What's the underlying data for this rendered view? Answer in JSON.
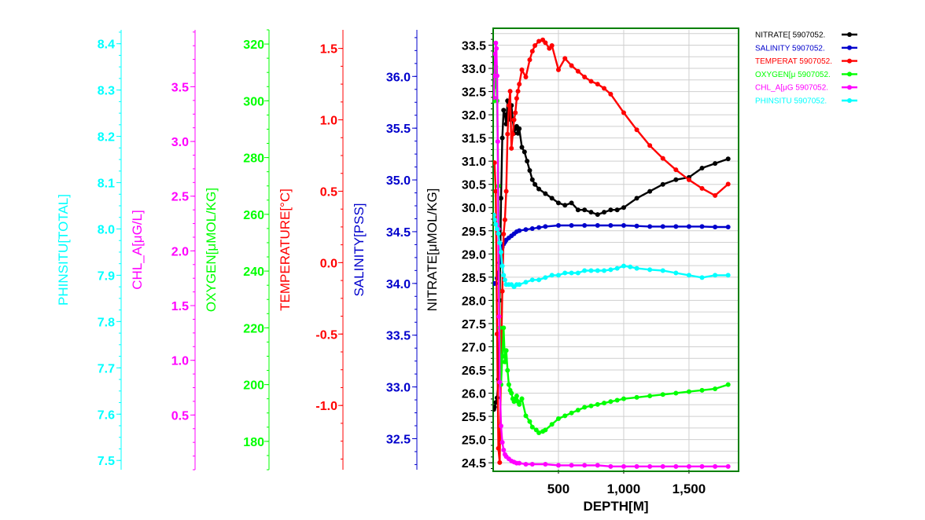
{
  "chart_data": {
    "type": "line",
    "xaxis": {
      "label": "DEPTH[M]",
      "range": [
        0,
        1880
      ],
      "ticks": [
        500,
        1000,
        1500
      ],
      "tick_labels": [
        "500",
        "1,000",
        "1,500"
      ]
    },
    "grid": true,
    "legend_position": "top-right",
    "axes": [
      {
        "key": "phinsitu",
        "label": "PHINSITU[TOTAL]",
        "color": "#00ffff",
        "range": [
          7.48,
          8.43
        ],
        "ticks": [
          7.5,
          7.6,
          7.7,
          7.8,
          7.9,
          8.0,
          8.1,
          8.2,
          8.3,
          8.4
        ],
        "tick_labels": [
          "7.5",
          "7.6",
          "7.7",
          "7.8",
          "7.9",
          "8.0",
          "8.1",
          "8.2",
          "8.3",
          "8.4"
        ]
      },
      {
        "key": "chl",
        "label": "CHL_A[μG/L]",
        "color": "#ff00ff",
        "range": [
          0,
          4.02
        ],
        "ticks": [
          0.5,
          1.0,
          1.5,
          2.0,
          2.5,
          3.0,
          3.5
        ],
        "tick_labels": [
          "0.5",
          "1.0",
          "1.5",
          "2.0",
          "2.5",
          "3.0",
          "3.5"
        ]
      },
      {
        "key": "oxygen",
        "label": "OXYGEN[μMOL/KG]",
        "color": "#00ff00",
        "range": [
          170,
          325
        ],
        "ticks": [
          180,
          200,
          220,
          240,
          260,
          280,
          300,
          320
        ],
        "tick_labels": [
          "180",
          "200",
          "220",
          "240",
          "260",
          "280",
          "300",
          "320"
        ]
      },
      {
        "key": "temperature",
        "label": "TEMPERATURE[°C]",
        "color": "#ff0000",
        "range": [
          -1.45,
          1.63
        ],
        "ticks": [
          -1.0,
          -0.5,
          0.0,
          0.5,
          1.0,
          1.5
        ],
        "tick_labels": [
          "-1.0",
          "-0.5",
          "0.0",
          "0.5",
          "1.0",
          "1.5"
        ]
      },
      {
        "key": "salinity",
        "label": "SALINITY[PSS]",
        "color": "#0000cc",
        "range": [
          32.2,
          36.45
        ],
        "ticks": [
          32.5,
          33.0,
          33.5,
          34.0,
          34.5,
          35.0,
          35.5,
          36.0
        ],
        "tick_labels": [
          "32.5",
          "33.0",
          "33.5",
          "34.0",
          "34.5",
          "35.0",
          "35.5",
          "36.0"
        ]
      },
      {
        "key": "nitrate",
        "label": "NITRATE[μMOL/KG]",
        "color": "#000000",
        "range": [
          24.35,
          33.83
        ],
        "ticks": [
          24.5,
          25.0,
          25.5,
          26.0,
          26.5,
          27.0,
          27.5,
          28.0,
          28.5,
          29.0,
          29.5,
          30.0,
          30.5,
          31.0,
          31.5,
          32.0,
          32.5,
          33.0,
          33.5
        ],
        "tick_labels": [
          "24.5",
          "25.0",
          "25.5",
          "26.0",
          "26.5",
          "27.0",
          "27.5",
          "28.0",
          "28.5",
          "29.0",
          "29.5",
          "30.0",
          "30.5",
          "31.0",
          "31.5",
          "32.0",
          "32.5",
          "33.0",
          "33.5"
        ]
      }
    ],
    "series": [
      {
        "name": "NITRATE[ 5907052.",
        "axis": "nitrate",
        "color": "#000000",
        "x": [
          5,
          10,
          20,
          30,
          40,
          50,
          60,
          70,
          80,
          90,
          100,
          110,
          120,
          130,
          140,
          150,
          160,
          170,
          180,
          190,
          200,
          220,
          240,
          260,
          280,
          300,
          320,
          350,
          400,
          450,
          500,
          550,
          600,
          650,
          700,
          750,
          800,
          850,
          900,
          950,
          1000,
          1100,
          1200,
          1300,
          1400,
          1500,
          1600,
          1700,
          1800
        ],
        "y": [
          25.65,
          25.7,
          25.8,
          25.9,
          26.3,
          28.0,
          30.2,
          31.5,
          32.1,
          32.0,
          31.8,
          32.3,
          32.25,
          31.9,
          32.2,
          31.9,
          31.6,
          31.7,
          31.75,
          31.6,
          31.7,
          31.3,
          31.2,
          31.0,
          30.8,
          30.6,
          30.5,
          30.4,
          30.3,
          30.2,
          30.1,
          30.05,
          30.1,
          29.95,
          29.95,
          29.9,
          29.85,
          29.9,
          29.95,
          29.95,
          30.0,
          30.2,
          30.35,
          30.5,
          30.6,
          30.65,
          30.85,
          30.95,
          31.05
        ]
      },
      {
        "name": "SALINITY 5907052.",
        "axis": "salinity",
        "color": "#0000cc",
        "x": [
          5,
          10,
          20,
          30,
          40,
          50,
          60,
          70,
          80,
          90,
          100,
          120,
          140,
          160,
          180,
          200,
          250,
          300,
          350,
          400,
          500,
          600,
          700,
          800,
          900,
          1000,
          1100,
          1200,
          1300,
          1400,
          1500,
          1600,
          1700,
          1800
        ],
        "y": [
          34.0,
          34.0,
          34.0,
          34.05,
          34.1,
          34.2,
          34.3,
          34.35,
          34.38,
          34.4,
          34.42,
          34.44,
          34.46,
          34.48,
          34.5,
          34.51,
          34.52,
          34.53,
          34.54,
          34.55,
          34.56,
          34.56,
          34.56,
          34.56,
          34.56,
          34.56,
          34.555,
          34.55,
          34.55,
          34.55,
          34.55,
          34.55,
          34.545,
          34.545
        ]
      },
      {
        "name": "TEMPERAT 5907052.",
        "axis": "temperature",
        "color": "#ff0000",
        "x": [
          5,
          10,
          20,
          30,
          40,
          50,
          60,
          70,
          80,
          90,
          100,
          110,
          120,
          130,
          140,
          150,
          160,
          170,
          180,
          190,
          200,
          220,
          250,
          280,
          300,
          320,
          350,
          380,
          400,
          430,
          450,
          500,
          550,
          600,
          650,
          700,
          750,
          800,
          850,
          900,
          1000,
          1100,
          1200,
          1300,
          1400,
          1500,
          1600,
          1700,
          1800
        ],
        "y": [
          0.7,
          0.7,
          0.5,
          -0.5,
          -1.3,
          -1.4,
          -0.7,
          -0.2,
          0.2,
          0.3,
          0.5,
          0.9,
          1.1,
          1.2,
          0.8,
          0.9,
          1.0,
          1.05,
          1.15,
          1.2,
          1.25,
          1.35,
          1.3,
          1.42,
          1.48,
          1.52,
          1.55,
          1.56,
          1.54,
          1.5,
          1.52,
          1.35,
          1.43,
          1.38,
          1.34,
          1.3,
          1.27,
          1.25,
          1.22,
          1.18,
          1.05,
          0.93,
          0.82,
          0.73,
          0.65,
          0.58,
          0.52,
          0.47,
          0.55
        ]
      },
      {
        "name": "OXYGEN[μ 5907052.",
        "axis": "oxygen",
        "color": "#00ff00",
        "x": [
          5,
          10,
          20,
          30,
          40,
          50,
          60,
          70,
          80,
          90,
          100,
          110,
          120,
          130,
          140,
          150,
          160,
          170,
          180,
          190,
          200,
          220,
          250,
          280,
          300,
          330,
          350,
          380,
          400,
          450,
          500,
          550,
          600,
          650,
          700,
          750,
          800,
          850,
          900,
          950,
          1000,
          1100,
          1200,
          1300,
          1400,
          1500,
          1600,
          1700,
          1800
        ],
        "y": [
          300,
          305,
          312,
          300,
          270,
          220,
          200,
          210,
          220,
          208,
          212,
          205,
          200,
          198,
          197,
          195,
          194,
          195,
          196,
          194,
          193,
          195,
          189,
          187,
          185,
          184,
          183,
          183.5,
          184,
          186,
          188,
          189,
          190,
          191,
          192,
          192.5,
          193,
          193.5,
          194,
          194.5,
          195,
          195.5,
          196,
          196.5,
          197,
          197.5,
          198,
          198.5,
          200
        ]
      },
      {
        "name": "CHL_A[μG 5907052.",
        "axis": "chl",
        "color": "#ff00ff",
        "x": [
          5,
          10,
          15,
          20,
          25,
          30,
          35,
          40,
          45,
          50,
          60,
          70,
          80,
          90,
          100,
          120,
          140,
          160,
          180,
          200,
          250,
          300,
          400,
          500,
          600,
          700,
          800,
          900,
          1000,
          1100,
          1200,
          1300,
          1400,
          1500,
          1600,
          1700,
          1800
        ],
        "y": [
          3.4,
          3.6,
          3.8,
          3.9,
          3.85,
          3.6,
          3.0,
          2.2,
          1.4,
          0.8,
          0.4,
          0.25,
          0.18,
          0.14,
          0.12,
          0.1,
          0.08,
          0.07,
          0.06,
          0.06,
          0.05,
          0.05,
          0.05,
          0.04,
          0.04,
          0.04,
          0.04,
          0.03,
          0.03,
          0.03,
          0.03,
          0.03,
          0.03,
          0.03,
          0.03,
          0.03,
          0.03
        ]
      },
      {
        "name": "PHINSITU 5907052.",
        "axis": "phinsitu",
        "color": "#00ffff",
        "x": [
          5,
          10,
          20,
          30,
          40,
          50,
          60,
          70,
          80,
          90,
          100,
          120,
          140,
          160,
          180,
          200,
          250,
          300,
          350,
          400,
          450,
          500,
          550,
          600,
          650,
          700,
          750,
          800,
          850,
          900,
          950,
          1000,
          1050,
          1100,
          1200,
          1300,
          1400,
          1500,
          1600,
          1700,
          1800
        ],
        "y": [
          8.03,
          8.02,
          8.01,
          8.0,
          7.99,
          7.97,
          7.95,
          7.92,
          7.9,
          7.89,
          7.88,
          7.88,
          7.88,
          7.875,
          7.88,
          7.88,
          7.885,
          7.89,
          7.89,
          7.895,
          7.9,
          7.9,
          7.905,
          7.905,
          7.905,
          7.91,
          7.91,
          7.91,
          7.91,
          7.912,
          7.915,
          7.92,
          7.918,
          7.915,
          7.912,
          7.91,
          7.905,
          7.9,
          7.895,
          7.9,
          7.9
        ]
      }
    ]
  }
}
